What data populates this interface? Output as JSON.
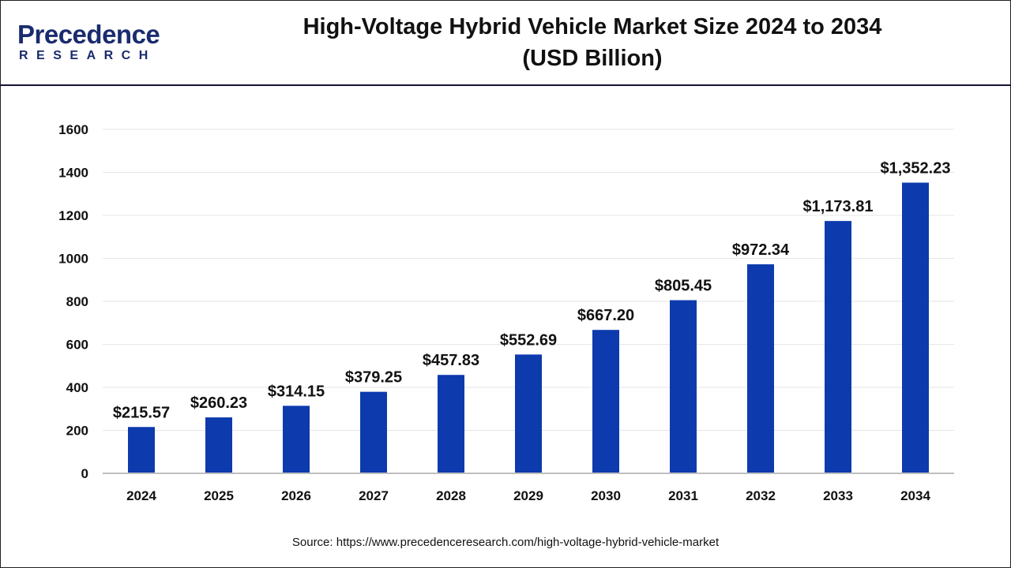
{
  "logo": {
    "text_main": "Precedence",
    "text_sub": "RESEARCH"
  },
  "title_line1": "High-Voltage Hybrid Vehicle Market Size 2024 to 2034",
  "title_line2": "(USD Billion)",
  "source": "Source: https://www.precedenceresearch.com/high-voltage-hybrid-vehicle-market",
  "colors": {
    "bar": "#0d3aad",
    "grid": "#e6e6e6",
    "axis": "#bfbfbf"
  },
  "chart_data": {
    "type": "bar",
    "title": "High-Voltage Hybrid Vehicle Market Size 2024 to 2034 (USD Billion)",
    "categories": [
      "2024",
      "2025",
      "2026",
      "2027",
      "2028",
      "2029",
      "2030",
      "2031",
      "2032",
      "2033",
      "2034"
    ],
    "values": [
      215.57,
      260.23,
      314.15,
      379.25,
      457.83,
      552.69,
      667.2,
      805.45,
      972.34,
      1173.81,
      1352.23
    ],
    "labels": [
      "$215.57",
      "$260.23",
      "$314.15",
      "$379.25",
      "$457.83",
      "$552.69",
      "$667.20",
      "$805.45",
      "$972.34",
      "$1,173.81",
      "$1,352.23"
    ],
    "yticks": [
      0,
      200,
      400,
      600,
      800,
      1000,
      1200,
      1400,
      1600
    ],
    "ylim": [
      0,
      1600
    ],
    "grid": true,
    "legend": "none"
  }
}
